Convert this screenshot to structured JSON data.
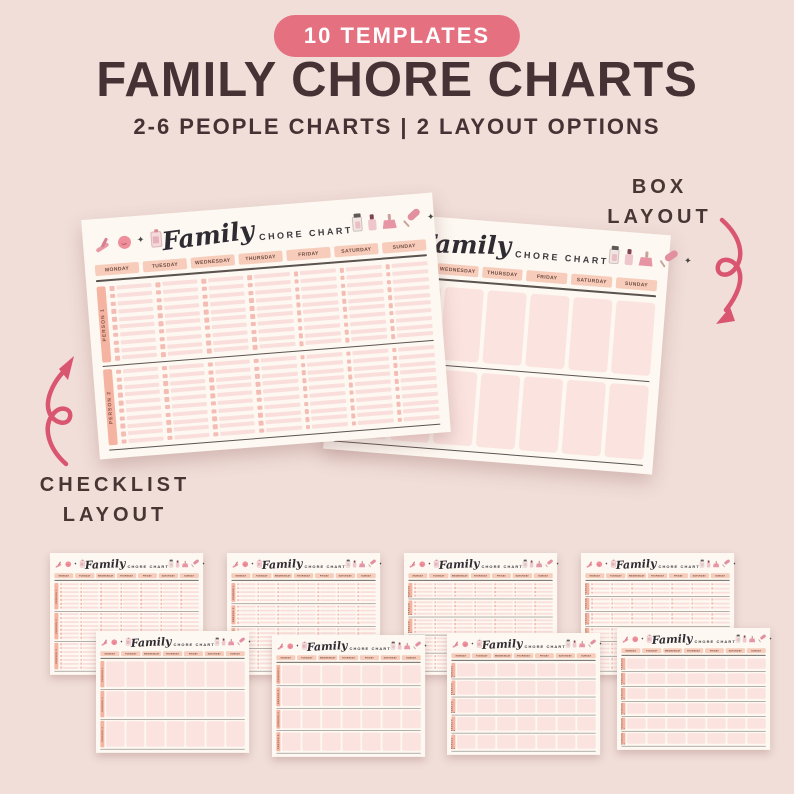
{
  "page": {
    "background": "#f1ded8"
  },
  "header": {
    "badge": "10 TEMPLATES",
    "title": "FAMILY CHORE CHARTS",
    "subtitle": "2-6 PEOPLE CHARTS | 2 LAYOUT OPTIONS"
  },
  "annotations": {
    "box_label_line1": "BOX",
    "box_label_line2": "LAYOUT",
    "checklist_label_line1": "CHECKLIST",
    "checklist_label_line2": "LAYOUT"
  },
  "chart": {
    "script_title": "Family",
    "caps_title": "CHORE CHART",
    "days": [
      "MONDAY",
      "TUESDAY",
      "WEDNESDAY",
      "THURSDAY",
      "FRIDAY",
      "SATURDAY",
      "SUNDAY"
    ],
    "persons": [
      "PERSON 1",
      "PERSON 2",
      "PERSON 3",
      "PERSON 4",
      "PERSON 5",
      "PERSON 6"
    ],
    "left_icons": [
      "squeegee-icon",
      "smiley-icon",
      "sparkle-icon",
      "detergent-bottle-icon"
    ],
    "right_icons": [
      "spray-bottle-icon",
      "nail-polish-icon",
      "dustpan-brush-icon",
      "duster-icon",
      "sparkle-icon"
    ],
    "sparkle_glyph": "✦"
  },
  "hero_charts": [
    {
      "name": "hero-box-chart",
      "layout": "box",
      "people": 2
    },
    {
      "name": "hero-checklist-chart",
      "layout": "checklist",
      "people": 2
    }
  ],
  "thumbnails": [
    {
      "layout": "checklist",
      "people": 3
    },
    {
      "layout": "checklist",
      "people": 4
    },
    {
      "layout": "checklist",
      "people": 5
    },
    {
      "layout": "checklist",
      "people": 6
    },
    {
      "layout": "box",
      "people": 3
    },
    {
      "layout": "box",
      "people": 4
    },
    {
      "layout": "box",
      "people": 5
    },
    {
      "layout": "box",
      "people": 6
    }
  ],
  "colors": {
    "background": "#f1ded8",
    "badge": "#e57180",
    "title_text": "#463235",
    "arrow": "#d95570",
    "paper": "#fdf8f1",
    "cell_pink": "#fbe3df",
    "day_pill": "#f7ccba",
    "person_tab": "#f4b4a1"
  }
}
